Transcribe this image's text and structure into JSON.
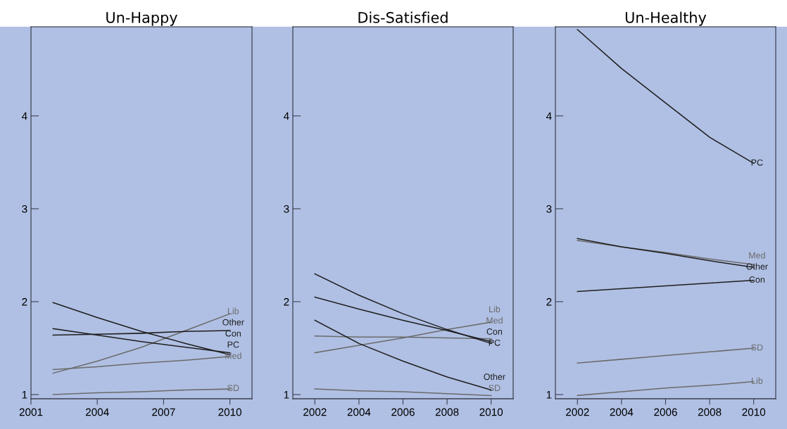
{
  "chart_data": [
    {
      "type": "line",
      "title": "Un-Happy",
      "x": [
        2002,
        2004,
        2006,
        2008,
        2010
      ],
      "xlim": [
        2001,
        2011
      ],
      "xticks": [
        2001,
        2004,
        2007,
        2010
      ],
      "ylim": [
        0.955,
        4.96
      ],
      "yticks": [
        1,
        2,
        3,
        4
      ],
      "grid": false,
      "legend": false,
      "series": [
        {
          "name": "Lib",
          "color": "#6a6a6a",
          "values": [
            1.23,
            1.36,
            1.51,
            1.69,
            1.87
          ]
        },
        {
          "name": "Other",
          "color": "#1e1e1e",
          "values": [
            1.64,
            1.65,
            1.66,
            1.68,
            1.69
          ]
        },
        {
          "name": "Con",
          "color": "#1e1e1e",
          "values": [
            1.71,
            1.64,
            1.57,
            1.51,
            1.45
          ]
        },
        {
          "name": "Med",
          "color": "#6a6a6a",
          "values": [
            1.27,
            1.3,
            1.34,
            1.37,
            1.41
          ]
        },
        {
          "name": "PC",
          "color": "#1e1e1e",
          "values": [
            1.99,
            1.83,
            1.68,
            1.55,
            1.43
          ]
        },
        {
          "name": "SD",
          "color": "#6a6a6a",
          "values": [
            1.0,
            1.02,
            1.03,
            1.05,
            1.06
          ]
        }
      ]
    },
    {
      "type": "line",
      "title": "Dis-Satisfied",
      "x": [
        2002,
        2004,
        2006,
        2008,
        2010
      ],
      "xlim": [
        2001,
        2011
      ],
      "xticks": [
        2002,
        2004,
        2006,
        2008,
        2010
      ],
      "ylim": [
        0.955,
        4.96
      ],
      "yticks": [
        1,
        2,
        3,
        4
      ],
      "grid": false,
      "legend": false,
      "series": [
        {
          "name": "Lib",
          "color": "#6a6a6a",
          "values": [
            1.45,
            1.53,
            1.61,
            1.7,
            1.78
          ]
        },
        {
          "name": "Med",
          "color": "#6a6a6a",
          "values": [
            1.63,
            1.62,
            1.62,
            1.61,
            1.6
          ]
        },
        {
          "name": "Con",
          "color": "#1e1e1e",
          "values": [
            2.05,
            1.92,
            1.8,
            1.69,
            1.57
          ]
        },
        {
          "name": "PC",
          "color": "#1e1e1e",
          "values": [
            2.3,
            2.07,
            1.87,
            1.7,
            1.55
          ]
        },
        {
          "name": "Other",
          "color": "#1e1e1e",
          "values": [
            1.8,
            1.55,
            1.36,
            1.19,
            1.05
          ]
        },
        {
          "name": "SD",
          "color": "#6a6a6a",
          "values": [
            1.06,
            1.04,
            1.03,
            1.01,
            0.99
          ]
        }
      ]
    },
    {
      "type": "line",
      "title": "Un-Healthy",
      "x": [
        2002,
        2004,
        2006,
        2008,
        2010
      ],
      "xlim": [
        2001,
        2011
      ],
      "xticks": [
        2002,
        2004,
        2006,
        2008,
        2010
      ],
      "ylim": [
        0.955,
        4.96
      ],
      "yticks": [
        1,
        2,
        3,
        4
      ],
      "grid": false,
      "legend": false,
      "series": [
        {
          "name": "PC",
          "color": "#1e1e1e",
          "values": [
            4.93,
            4.51,
            4.14,
            3.77,
            3.49
          ]
        },
        {
          "name": "Med",
          "color": "#6a6a6a",
          "values": [
            2.66,
            2.59,
            2.53,
            2.46,
            2.4
          ]
        },
        {
          "name": "Other",
          "color": "#1e1e1e",
          "values": [
            2.68,
            2.59,
            2.52,
            2.44,
            2.37
          ]
        },
        {
          "name": "Con",
          "color": "#1e1e1e",
          "values": [
            2.11,
            2.14,
            2.17,
            2.2,
            2.23
          ]
        },
        {
          "name": "SD",
          "color": "#6a6a6a",
          "values": [
            1.34,
            1.38,
            1.42,
            1.46,
            1.5
          ]
        },
        {
          "name": "Lib",
          "color": "#6a6a6a",
          "values": [
            0.99,
            1.03,
            1.07,
            1.1,
            1.14
          ]
        }
      ]
    }
  ]
}
